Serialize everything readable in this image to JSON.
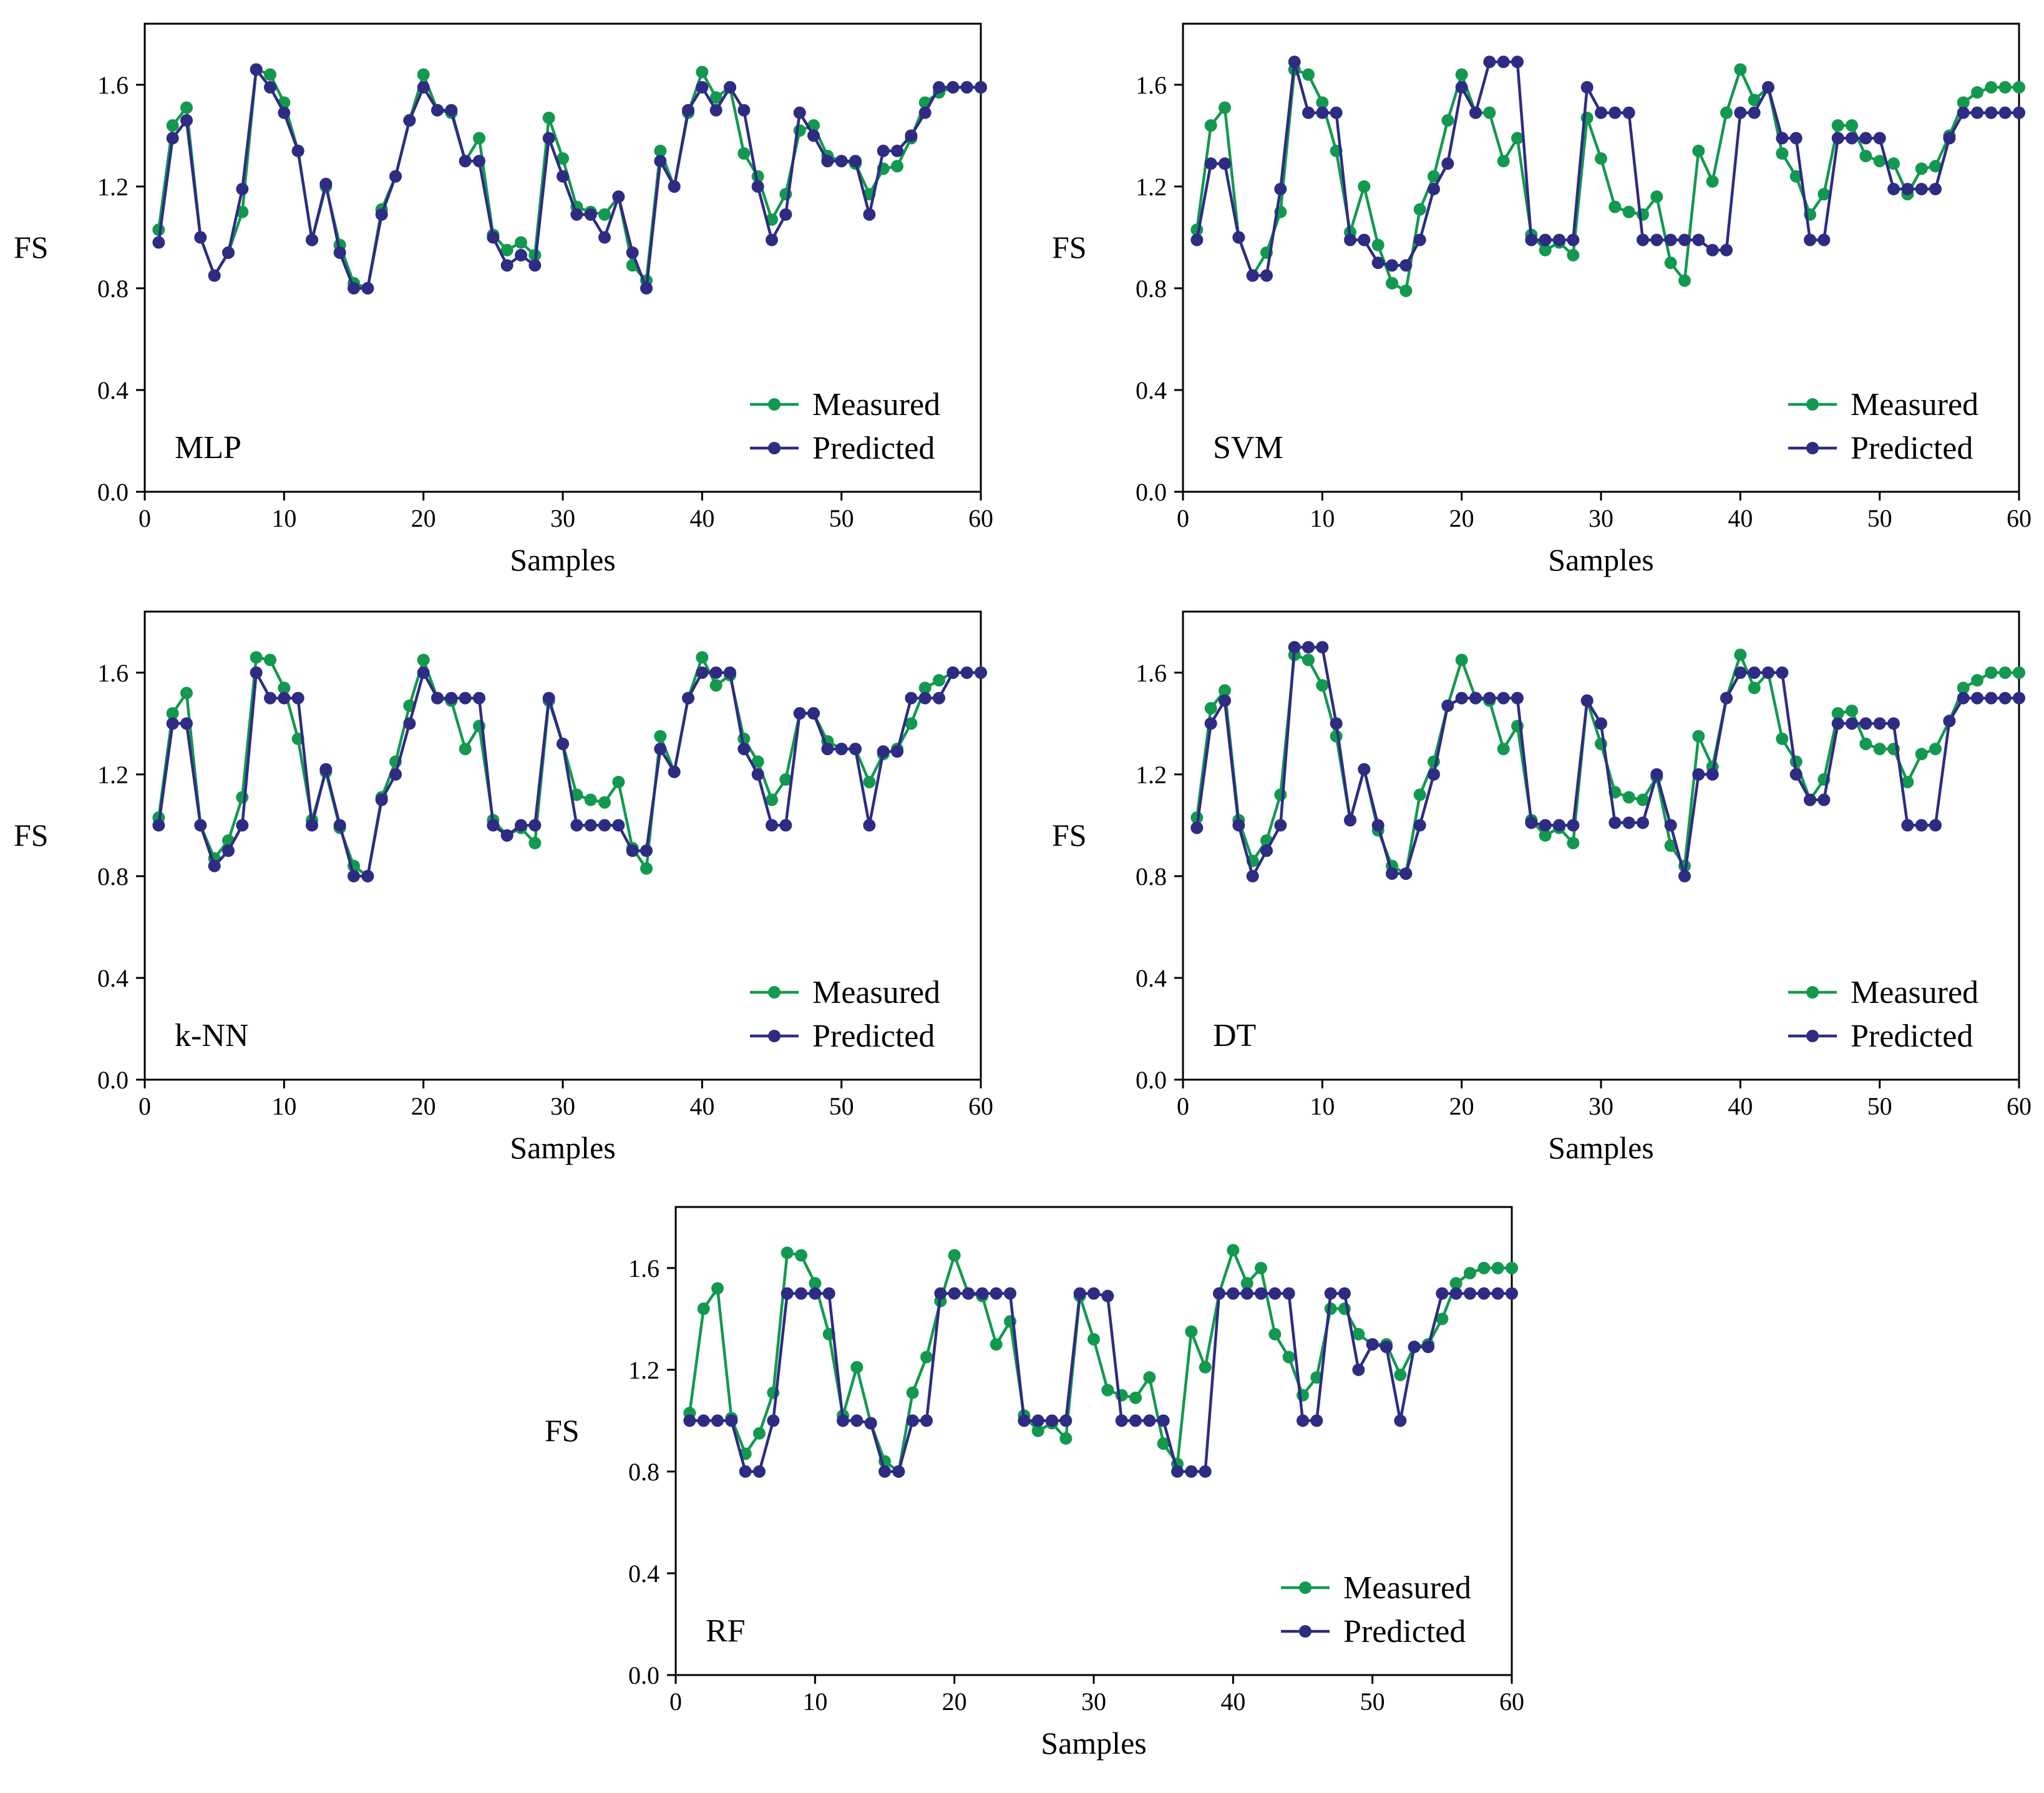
{
  "colors": {
    "measured": "#13994f",
    "predicted": "#2e2c82",
    "axis": "#000000"
  },
  "chart_data": [
    {
      "type": "line",
      "panel": "MLP",
      "xlabel": "Samples",
      "ylabel": "FS",
      "xlim": [
        0,
        60
      ],
      "ylim": [
        0.0,
        1.84
      ],
      "xticks": [
        "0",
        "10",
        "20",
        "30",
        "40",
        "50",
        "60"
      ],
      "yticks": [
        "0.0",
        "0.4",
        "0.8",
        "1.2",
        "1.6"
      ],
      "legend_position": "bottom-right",
      "x": [
        1,
        2,
        3,
        4,
        5,
        6,
        7,
        8,
        9,
        10,
        11,
        12,
        13,
        14,
        15,
        16,
        17,
        18,
        19,
        20,
        21,
        22,
        23,
        24,
        25,
        26,
        27,
        28,
        29,
        30,
        31,
        32,
        33,
        34,
        35,
        36,
        37,
        38,
        39,
        40,
        41,
        42,
        43,
        44,
        45,
        46,
        47,
        48,
        49,
        50,
        51,
        52,
        53,
        54,
        55,
        56,
        57,
        58,
        59,
        60
      ],
      "series": [
        {
          "name": "Measured",
          "values": [
            1.03,
            1.44,
            1.51,
            1.0,
            0.85,
            0.94,
            1.1,
            1.66,
            1.64,
            1.53,
            1.34,
            0.99,
            1.2,
            0.97,
            0.82,
            0.8,
            1.11,
            1.24,
            1.46,
            1.64,
            1.5,
            1.49,
            1.3,
            1.39,
            1.01,
            0.95,
            0.98,
            0.93,
            1.47,
            1.31,
            1.12,
            1.1,
            1.09,
            1.16,
            0.89,
            0.83,
            1.34,
            1.2,
            1.49,
            1.65,
            1.55,
            1.59,
            1.33,
            1.24,
            1.07,
            1.17,
            1.42,
            1.44,
            1.32,
            1.3,
            1.29,
            1.17,
            1.27,
            1.28,
            1.39,
            1.53,
            1.57,
            1.59,
            1.59,
            1.59
          ]
        },
        {
          "name": "Predicted",
          "values": [
            0.98,
            1.39,
            1.46,
            1.0,
            0.85,
            0.94,
            1.19,
            1.66,
            1.59,
            1.49,
            1.34,
            0.99,
            1.21,
            0.94,
            0.8,
            0.8,
            1.09,
            1.24,
            1.46,
            1.59,
            1.5,
            1.5,
            1.3,
            1.3,
            1.0,
            0.89,
            0.93,
            0.89,
            1.39,
            1.24,
            1.09,
            1.09,
            1.0,
            1.16,
            0.94,
            0.8,
            1.3,
            1.2,
            1.5,
            1.59,
            1.5,
            1.59,
            1.5,
            1.2,
            0.99,
            1.09,
            1.49,
            1.4,
            1.3,
            1.3,
            1.3,
            1.09,
            1.34,
            1.34,
            1.4,
            1.49,
            1.59,
            1.59,
            1.59,
            1.59
          ]
        }
      ]
    },
    {
      "type": "line",
      "panel": "SVM",
      "xlabel": "Samples",
      "ylabel": "FS",
      "xlim": [
        0,
        60
      ],
      "ylim": [
        0.0,
        1.84
      ],
      "xticks": [
        "0",
        "10",
        "20",
        "30",
        "40",
        "50",
        "60"
      ],
      "yticks": [
        "0.0",
        "0.4",
        "0.8",
        "1.2",
        "1.6"
      ],
      "legend_position": "bottom-right",
      "x": [
        1,
        2,
        3,
        4,
        5,
        6,
        7,
        8,
        9,
        10,
        11,
        12,
        13,
        14,
        15,
        16,
        17,
        18,
        19,
        20,
        21,
        22,
        23,
        24,
        25,
        26,
        27,
        28,
        29,
        30,
        31,
        32,
        33,
        34,
        35,
        36,
        37,
        38,
        39,
        40,
        41,
        42,
        43,
        44,
        45,
        46,
        47,
        48,
        49,
        50,
        51,
        52,
        53,
        54,
        55,
        56,
        57,
        58,
        59,
        60
      ],
      "series": [
        {
          "name": "Measured",
          "values": [
            1.03,
            1.44,
            1.51,
            1.0,
            0.85,
            0.94,
            1.1,
            1.66,
            1.64,
            1.53,
            1.34,
            1.02,
            1.2,
            0.97,
            0.82,
            0.79,
            1.11,
            1.24,
            1.46,
            1.64,
            1.49,
            1.49,
            1.3,
            1.39,
            1.01,
            0.95,
            0.98,
            0.93,
            1.47,
            1.31,
            1.12,
            1.1,
            1.09,
            1.16,
            0.9,
            0.83,
            1.34,
            1.22,
            1.49,
            1.66,
            1.54,
            1.59,
            1.33,
            1.24,
            1.09,
            1.17,
            1.44,
            1.44,
            1.32,
            1.3,
            1.29,
            1.17,
            1.27,
            1.28,
            1.4,
            1.53,
            1.57,
            1.59,
            1.59,
            1.59
          ]
        },
        {
          "name": "Predicted",
          "values": [
            0.99,
            1.29,
            1.29,
            1.0,
            0.85,
            0.85,
            1.19,
            1.69,
            1.49,
            1.49,
            1.49,
            0.99,
            0.99,
            0.9,
            0.89,
            0.89,
            0.99,
            1.19,
            1.29,
            1.59,
            1.49,
            1.69,
            1.69,
            1.69,
            0.99,
            0.99,
            0.99,
            0.99,
            1.59,
            1.49,
            1.49,
            1.49,
            0.99,
            0.99,
            0.99,
            0.99,
            0.99,
            0.95,
            0.95,
            1.49,
            1.49,
            1.59,
            1.39,
            1.39,
            0.99,
            0.99,
            1.39,
            1.39,
            1.39,
            1.39,
            1.19,
            1.19,
            1.19,
            1.19,
            1.39,
            1.49,
            1.49,
            1.49,
            1.49,
            1.49
          ]
        }
      ]
    },
    {
      "type": "line",
      "panel": "k-NN",
      "xlabel": "Samples",
      "ylabel": "FS",
      "xlim": [
        0,
        60
      ],
      "ylim": [
        0.0,
        1.84
      ],
      "xticks": [
        "0",
        "10",
        "20",
        "30",
        "40",
        "50",
        "60"
      ],
      "yticks": [
        "0.0",
        "0.4",
        "0.8",
        "1.2",
        "1.6"
      ],
      "legend_position": "bottom-right",
      "x": [
        1,
        2,
        3,
        4,
        5,
        6,
        7,
        8,
        9,
        10,
        11,
        12,
        13,
        14,
        15,
        16,
        17,
        18,
        19,
        20,
        21,
        22,
        23,
        24,
        25,
        26,
        27,
        28,
        29,
        30,
        31,
        32,
        33,
        34,
        35,
        36,
        37,
        38,
        39,
        40,
        41,
        42,
        43,
        44,
        45,
        46,
        47,
        48,
        49,
        50,
        51,
        52,
        53,
        54,
        55,
        56,
        57,
        58,
        59,
        60
      ],
      "series": [
        {
          "name": "Measured",
          "values": [
            1.03,
            1.44,
            1.52,
            1.0,
            0.87,
            0.94,
            1.11,
            1.66,
            1.65,
            1.54,
            1.34,
            1.02,
            1.21,
            0.99,
            0.84,
            0.8,
            1.11,
            1.25,
            1.47,
            1.65,
            1.5,
            1.49,
            1.3,
            1.39,
            1.02,
            0.96,
            0.99,
            0.93,
            1.49,
            1.32,
            1.12,
            1.1,
            1.09,
            1.17,
            0.91,
            0.83,
            1.35,
            1.21,
            1.5,
            1.66,
            1.55,
            1.59,
            1.34,
            1.25,
            1.1,
            1.18,
            1.44,
            1.44,
            1.33,
            1.3,
            1.3,
            1.17,
            1.28,
            1.3,
            1.4,
            1.54,
            1.57,
            1.6,
            1.6,
            1.6
          ]
        },
        {
          "name": "Predicted",
          "values": [
            1.0,
            1.4,
            1.4,
            1.0,
            0.84,
            0.9,
            1.0,
            1.6,
            1.5,
            1.5,
            1.5,
            1.0,
            1.22,
            1.0,
            0.8,
            0.8,
            1.1,
            1.2,
            1.4,
            1.6,
            1.5,
            1.5,
            1.5,
            1.5,
            1.0,
            0.96,
            1.0,
            1.0,
            1.5,
            1.32,
            1.0,
            1.0,
            1.0,
            1.0,
            0.9,
            0.9,
            1.3,
            1.21,
            1.5,
            1.6,
            1.6,
            1.6,
            1.3,
            1.2,
            1.0,
            1.0,
            1.44,
            1.44,
            1.3,
            1.3,
            1.3,
            1.0,
            1.29,
            1.29,
            1.5,
            1.5,
            1.5,
            1.6,
            1.6,
            1.6
          ]
        }
      ]
    },
    {
      "type": "line",
      "panel": "DT",
      "xlabel": "Samples",
      "ylabel": "FS",
      "xlim": [
        0,
        60
      ],
      "ylim": [
        0.0,
        1.84
      ],
      "xticks": [
        "0",
        "10",
        "20",
        "30",
        "40",
        "50",
        "60"
      ],
      "yticks": [
        "0.0",
        "0.4",
        "0.8",
        "1.2",
        "1.6"
      ],
      "legend_position": "bottom-right",
      "x": [
        1,
        2,
        3,
        4,
        5,
        6,
        7,
        8,
        9,
        10,
        11,
        12,
        13,
        14,
        15,
        16,
        17,
        18,
        19,
        20,
        21,
        22,
        23,
        24,
        25,
        26,
        27,
        28,
        29,
        30,
        31,
        32,
        33,
        34,
        35,
        36,
        37,
        38,
        39,
        40,
        41,
        42,
        43,
        44,
        45,
        46,
        47,
        48,
        49,
        50,
        51,
        52,
        53,
        54,
        55,
        56,
        57,
        58,
        59,
        60
      ],
      "series": [
        {
          "name": "Measured",
          "values": [
            1.03,
            1.46,
            1.53,
            1.02,
            0.86,
            0.94,
            1.12,
            1.67,
            1.65,
            1.55,
            1.35,
            1.02,
            1.22,
            0.98,
            0.84,
            0.81,
            1.12,
            1.25,
            1.47,
            1.65,
            1.5,
            1.49,
            1.3,
            1.39,
            1.02,
            0.96,
            0.99,
            0.93,
            1.49,
            1.32,
            1.13,
            1.11,
            1.1,
            1.19,
            0.92,
            0.84,
            1.35,
            1.23,
            1.5,
            1.67,
            1.54,
            1.6,
            1.34,
            1.25,
            1.1,
            1.18,
            1.44,
            1.45,
            1.32,
            1.3,
            1.3,
            1.17,
            1.28,
            1.3,
            1.41,
            1.54,
            1.57,
            1.6,
            1.6,
            1.6
          ]
        },
        {
          "name": "Predicted",
          "values": [
            0.99,
            1.4,
            1.49,
            1.0,
            0.8,
            0.9,
            1.0,
            1.7,
            1.7,
            1.7,
            1.4,
            1.02,
            1.22,
            1.0,
            0.81,
            0.81,
            1.0,
            1.2,
            1.47,
            1.5,
            1.5,
            1.5,
            1.5,
            1.5,
            1.01,
            1.0,
            1.0,
            1.0,
            1.49,
            1.4,
            1.01,
            1.01,
            1.01,
            1.2,
            1.0,
            0.8,
            1.2,
            1.2,
            1.5,
            1.6,
            1.6,
            1.6,
            1.6,
            1.2,
            1.1,
            1.1,
            1.4,
            1.4,
            1.4,
            1.4,
            1.4,
            1.0,
            1.0,
            1.0,
            1.41,
            1.5,
            1.5,
            1.5,
            1.5,
            1.5
          ]
        }
      ]
    },
    {
      "type": "line",
      "panel": "RF",
      "xlabel": "Samples",
      "ylabel": "FS",
      "xlim": [
        0,
        60
      ],
      "ylim": [
        0.0,
        1.84
      ],
      "xticks": [
        "0",
        "10",
        "20",
        "30",
        "40",
        "50",
        "60"
      ],
      "yticks": [
        "0.0",
        "0.4",
        "0.8",
        "1.2",
        "1.6"
      ],
      "legend_position": "bottom-right",
      "x": [
        1,
        2,
        3,
        4,
        5,
        6,
        7,
        8,
        9,
        10,
        11,
        12,
        13,
        14,
        15,
        16,
        17,
        18,
        19,
        20,
        21,
        22,
        23,
        24,
        25,
        26,
        27,
        28,
        29,
        30,
        31,
        32,
        33,
        34,
        35,
        36,
        37,
        38,
        39,
        40,
        41,
        42,
        43,
        44,
        45,
        46,
        47,
        48,
        49,
        50,
        51,
        52,
        53,
        54,
        55,
        56,
        57,
        58,
        59,
        60
      ],
      "series": [
        {
          "name": "Measured",
          "values": [
            1.03,
            1.44,
            1.52,
            1.01,
            0.87,
            0.95,
            1.11,
            1.66,
            1.65,
            1.54,
            1.34,
            1.02,
            1.21,
            0.99,
            0.84,
            0.8,
            1.11,
            1.25,
            1.47,
            1.65,
            1.5,
            1.49,
            1.3,
            1.39,
            1.02,
            0.96,
            0.99,
            0.93,
            1.49,
            1.32,
            1.12,
            1.1,
            1.09,
            1.17,
            0.91,
            0.83,
            1.35,
            1.21,
            1.5,
            1.67,
            1.54,
            1.6,
            1.34,
            1.25,
            1.1,
            1.17,
            1.44,
            1.44,
            1.34,
            1.3,
            1.3,
            1.18,
            1.29,
            1.3,
            1.4,
            1.54,
            1.58,
            1.6,
            1.6,
            1.6
          ]
        },
        {
          "name": "Predicted",
          "values": [
            1.0,
            1.0,
            1.0,
            1.0,
            0.8,
            0.8,
            1.0,
            1.5,
            1.5,
            1.5,
            1.5,
            1.0,
            1.0,
            0.99,
            0.8,
            0.8,
            1.0,
            1.0,
            1.5,
            1.5,
            1.5,
            1.5,
            1.5,
            1.5,
            1.0,
            1.0,
            1.0,
            1.0,
            1.5,
            1.5,
            1.49,
            1.0,
            1.0,
            1.0,
            1.0,
            0.8,
            0.8,
            0.8,
            1.5,
            1.5,
            1.5,
            1.5,
            1.5,
            1.5,
            1.0,
            1.0,
            1.5,
            1.5,
            1.2,
            1.3,
            1.29,
            1.0,
            1.29,
            1.29,
            1.5,
            1.5,
            1.5,
            1.5,
            1.5,
            1.5
          ]
        }
      ]
    }
  ]
}
